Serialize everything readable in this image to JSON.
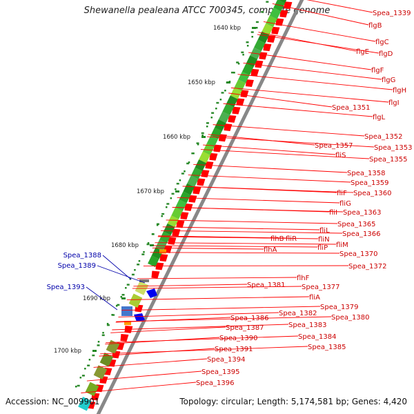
{
  "title": "Shewanella pealeana ATCC 700345, complete genome",
  "footer": {
    "accession": "Accession: NC_009901",
    "summary": "Topology: circular; Length: 5,174,581 bp; Genes: 4,420"
  },
  "colors": {
    "gene_red": "#ff0000",
    "label_red": "#cc0000",
    "label_blue": "#0000aa",
    "ruler_dot": "#228822",
    "backbone": "#888888"
  },
  "ticks": [
    "1640 kbp",
    "1650 kbp",
    "1660 kbp",
    "1670 kbp",
    "1680 kbp",
    "1690 kbp",
    "1700 kbp"
  ],
  "right_labels": [
    "Spea_1339",
    "flgB",
    "flgC",
    "flgE",
    "flgD",
    "flgF",
    "flgG",
    "flgH",
    "flgI",
    "Spea_1351",
    "flgL",
    "Spea_1352",
    "Spea_1353",
    "Spea_1357",
    "fliS",
    "Spea_1355",
    "Spea_1358",
    "Spea_1359",
    "fliF",
    "Spea_1360",
    "fliG",
    "fliI",
    "Spea_1363",
    "Spea_1365",
    "fliL",
    "Spea_1366",
    "fliN",
    "fliM",
    "fliP",
    "flhB",
    "fliR",
    "flhA",
    "Spea_1370",
    "Spea_1372",
    "flhF",
    "Spea_1381",
    "Spea_1377",
    "fliA",
    "Spea_1379",
    "Spea_1382",
    "Spea_1380",
    "Spea_1386",
    "Spea_1383",
    "Spea_1387",
    "Spea_1384",
    "Spea_1390",
    "Spea_1385",
    "Spea_1391",
    "Spea_1394",
    "Spea_1395",
    "Spea_1396"
  ],
  "left_labels": [
    "Spea_1388",
    "Spea_1389",
    "Spea_1393"
  ]
}
